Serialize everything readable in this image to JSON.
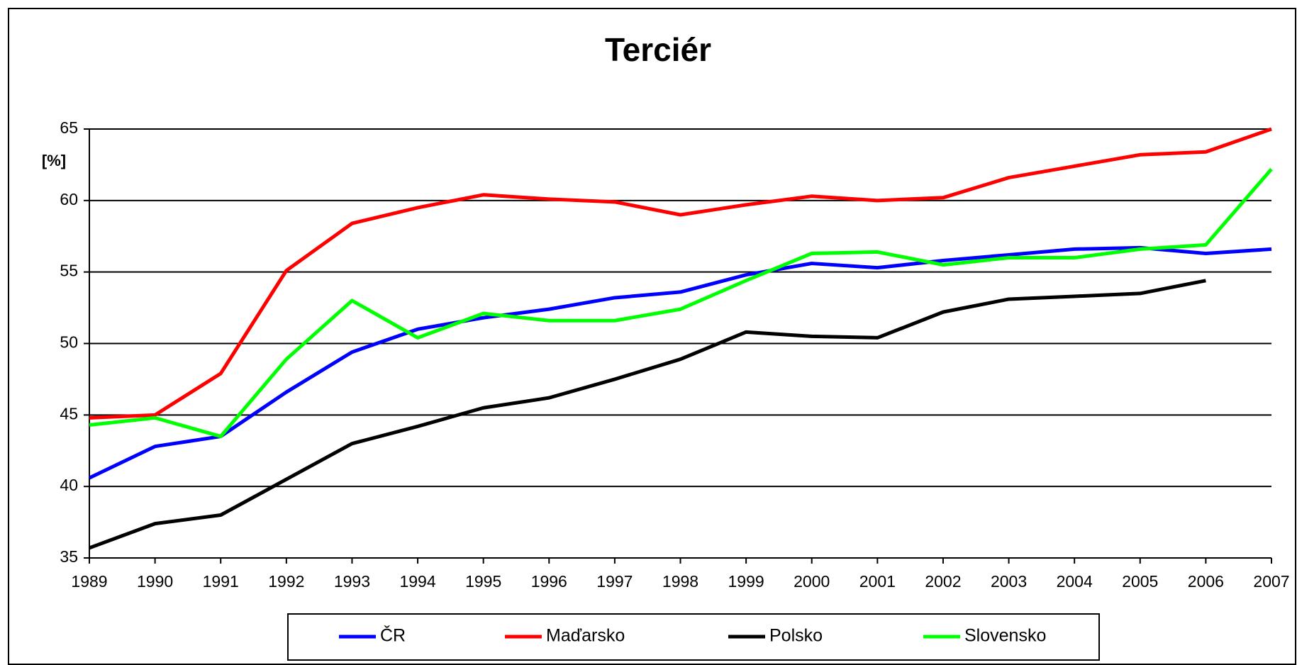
{
  "chart_data": {
    "type": "line",
    "title": "Terciér",
    "y_label": "[%]",
    "categories": [
      "1989",
      "1990",
      "1991",
      "1992",
      "1993",
      "1994",
      "1995",
      "1996",
      "1997",
      "1998",
      "1999",
      "2000",
      "2001",
      "2002",
      "2003",
      "2004",
      "2005",
      "2006",
      "2007"
    ],
    "ylim": [
      35,
      65
    ],
    "yticks": [
      35,
      40,
      45,
      50,
      55,
      60,
      65
    ],
    "grid": true,
    "legend": "bottom",
    "series": [
      {
        "name": "ČR",
        "color": "#0000ff",
        "values": [
          40.6,
          42.8,
          43.5,
          46.6,
          49.4,
          51.0,
          51.8,
          52.4,
          53.2,
          53.6,
          54.8,
          55.6,
          55.3,
          55.8,
          56.2,
          56.6,
          56.7,
          56.3,
          56.6
        ]
      },
      {
        "name": "Maďarsko",
        "color": "#ff0000",
        "values": [
          44.8,
          45.0,
          47.9,
          55.1,
          58.4,
          59.5,
          60.4,
          60.1,
          59.9,
          59.0,
          59.7,
          60.3,
          60.0,
          60.2,
          61.6,
          62.4,
          63.2,
          63.4,
          65.0
        ]
      },
      {
        "name": "Polsko",
        "color": "#000000",
        "values": [
          35.7,
          37.4,
          38.0,
          40.5,
          43.0,
          44.2,
          45.5,
          46.2,
          47.5,
          48.9,
          50.8,
          50.5,
          50.4,
          52.2,
          53.1,
          53.3,
          53.5,
          54.4,
          null
        ]
      },
      {
        "name": "Slovensko",
        "color": "#00ff00",
        "values": [
          44.3,
          44.8,
          43.5,
          48.9,
          53.0,
          50.4,
          52.1,
          51.6,
          51.6,
          52.4,
          54.4,
          56.3,
          56.4,
          55.5,
          56.0,
          56.0,
          56.6,
          56.9,
          62.2
        ]
      }
    ]
  }
}
